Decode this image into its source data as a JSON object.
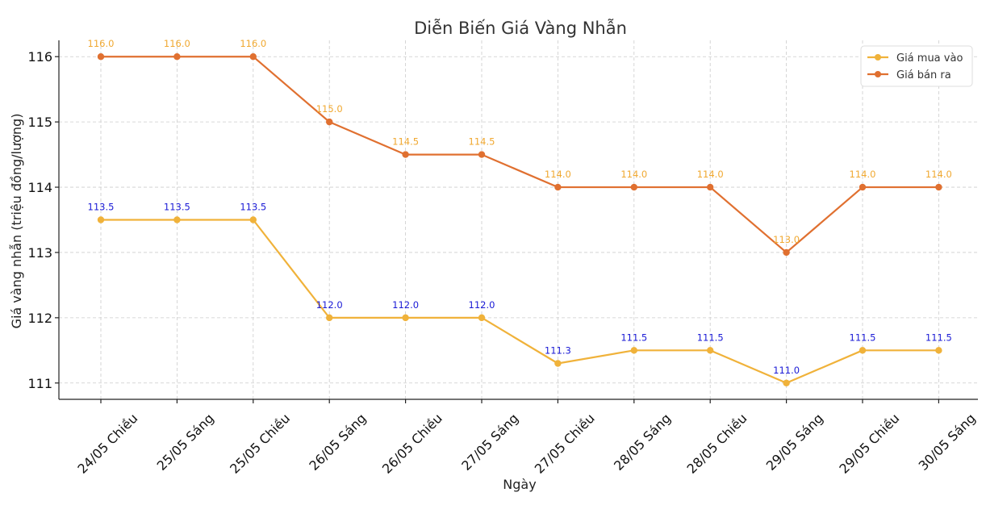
{
  "chart_data": {
    "type": "line",
    "title": "Diễn Biến Giá Vàng Nhẫn",
    "xlabel": "Ngày",
    "ylabel": "Giá vàng nhẫn (triệu đồng/lượng)",
    "categories": [
      "24/05 Chiều",
      "25/05 Sáng",
      "25/05 Chiều",
      "26/05 Sáng",
      "26/05 Chiều",
      "27/05 Sáng",
      "27/05 Chiều",
      "28/05 Sáng",
      "28/05 Chiều",
      "29/05 Sáng",
      "29/05 Chiều",
      "30/05 Sáng"
    ],
    "yticks": [
      111,
      112,
      113,
      114,
      115,
      116
    ],
    "ylim": [
      110.75,
      116.25
    ],
    "grid": true,
    "legend_position": "top-right",
    "series": [
      {
        "name": "Giá mua vào",
        "color": "#f0b23a",
        "label_color": "#1a1ad6",
        "values": [
          113.5,
          113.5,
          113.5,
          112.0,
          112.0,
          112.0,
          111.3,
          111.5,
          111.5,
          111.0,
          111.5,
          111.5
        ],
        "labels": [
          "113.5",
          "113.5",
          "113.5",
          "112.0",
          "112.0",
          "112.0",
          "111.3",
          "111.5",
          "111.5",
          "111.0",
          "111.5",
          "111.5"
        ]
      },
      {
        "name": "Giá bán ra",
        "color": "#e07030",
        "label_color": "#f0a830",
        "values": [
          116.0,
          116.0,
          116.0,
          115.0,
          114.5,
          114.5,
          114.0,
          114.0,
          114.0,
          113.0,
          114.0,
          114.0
        ],
        "labels": [
          "116.0",
          "116.0",
          "116.0",
          "115.0",
          "114.5",
          "114.5",
          "114.0",
          "114.0",
          "114.0",
          "113.0",
          "114.0",
          "114.0"
        ]
      }
    ]
  }
}
